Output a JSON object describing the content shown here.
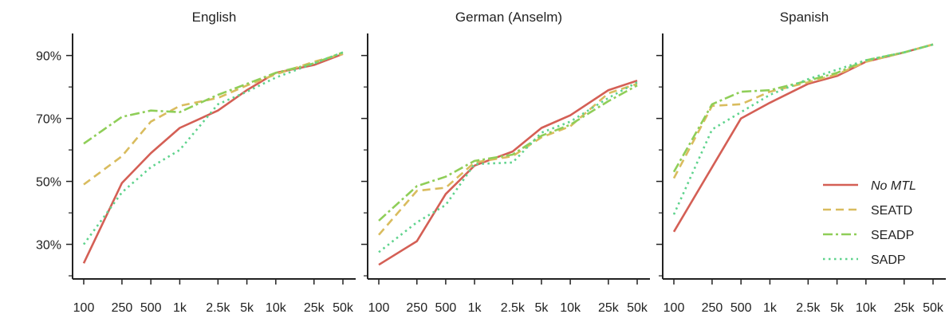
{
  "figure": {
    "y_ticks": [
      "30%",
      "50%",
      "70%",
      "90%"
    ],
    "x_ticks": [
      "100",
      "250",
      "500",
      "1k",
      "2.5k",
      "5k",
      "10k",
      "25k",
      "50k"
    ]
  },
  "styles": {
    "No MTL": {
      "color": "#d45f55",
      "dash": "",
      "width": 2.6,
      "italic": true
    },
    "SEATD": {
      "color": "#d9bc5e",
      "dash": "10,6",
      "width": 2.6,
      "italic": false
    },
    "SEADP": {
      "color": "#8fce58",
      "dash": "12,4,3,4",
      "width": 2.6,
      "italic": false
    },
    "SADP": {
      "color": "#5fd38d",
      "dash": "2.5,4.5",
      "width": 2.6,
      "italic": false
    }
  },
  "chart_data": [
    {
      "type": "line",
      "title": "English",
      "x": [
        "100",
        "250",
        "500",
        "1k",
        "2.5k",
        "5k",
        "10k",
        "25k",
        "50k"
      ],
      "ylim": [
        19,
        97
      ],
      "legend": false,
      "series": [
        {
          "name": "No MTL",
          "values": [
            24,
            49.5,
            59,
            67,
            72.5,
            79,
            84.5,
            87,
            90.5
          ]
        },
        {
          "name": "SEATD",
          "values": [
            49,
            58,
            69,
            74,
            76.5,
            80.5,
            84,
            88,
            90.5
          ]
        },
        {
          "name": "SEADP",
          "values": [
            62,
            70.5,
            72.5,
            72,
            77.5,
            81,
            84.5,
            87.5,
            91
          ]
        },
        {
          "name": "SADP",
          "values": [
            30,
            46.5,
            54.5,
            60,
            74.5,
            78.5,
            83,
            87.5,
            91
          ]
        }
      ]
    },
    {
      "type": "line",
      "title": "German (Anselm)",
      "x": [
        "100",
        "250",
        "500",
        "1k",
        "2.5k",
        "5k",
        "10k",
        "25k",
        "50k"
      ],
      "ylim": [
        19,
        97
      ],
      "legend": false,
      "series": [
        {
          "name": "No MTL",
          "values": [
            23.5,
            31,
            46,
            55,
            59.5,
            67,
            71,
            79,
            82
          ]
        },
        {
          "name": "SEATD",
          "values": [
            33,
            47,
            48,
            56,
            58,
            64,
            67.5,
            78,
            81
          ]
        },
        {
          "name": "SEADP",
          "values": [
            37.5,
            48.5,
            51.5,
            56.5,
            58.5,
            64.5,
            68,
            75.5,
            80.5
          ]
        },
        {
          "name": "SADP",
          "values": [
            27.5,
            37,
            42.5,
            55.5,
            56,
            65.5,
            69,
            76.5,
            81.5
          ]
        }
      ]
    },
    {
      "type": "line",
      "title": "Spanish",
      "x": [
        "100",
        "250",
        "500",
        "1k",
        "2.5k",
        "5k",
        "10k",
        "25k",
        "50k"
      ],
      "ylim": [
        19,
        97
      ],
      "legend": true,
      "legend_position": "lower-right",
      "series": [
        {
          "name": "No MTL",
          "values": [
            34,
            54.5,
            70,
            75,
            81,
            83.5,
            88,
            91,
            93.5
          ]
        },
        {
          "name": "SEATD",
          "values": [
            51,
            74,
            74.5,
            78.5,
            81.5,
            84,
            88,
            91,
            93.5
          ]
        },
        {
          "name": "SEADP",
          "values": [
            53,
            74.5,
            78.5,
            79,
            82,
            84.5,
            88.5,
            91,
            93.5
          ]
        },
        {
          "name": "SADP",
          "values": [
            39.5,
            66.5,
            72,
            77.5,
            82.5,
            85.5,
            88.5,
            91,
            93.5
          ]
        }
      ]
    }
  ]
}
